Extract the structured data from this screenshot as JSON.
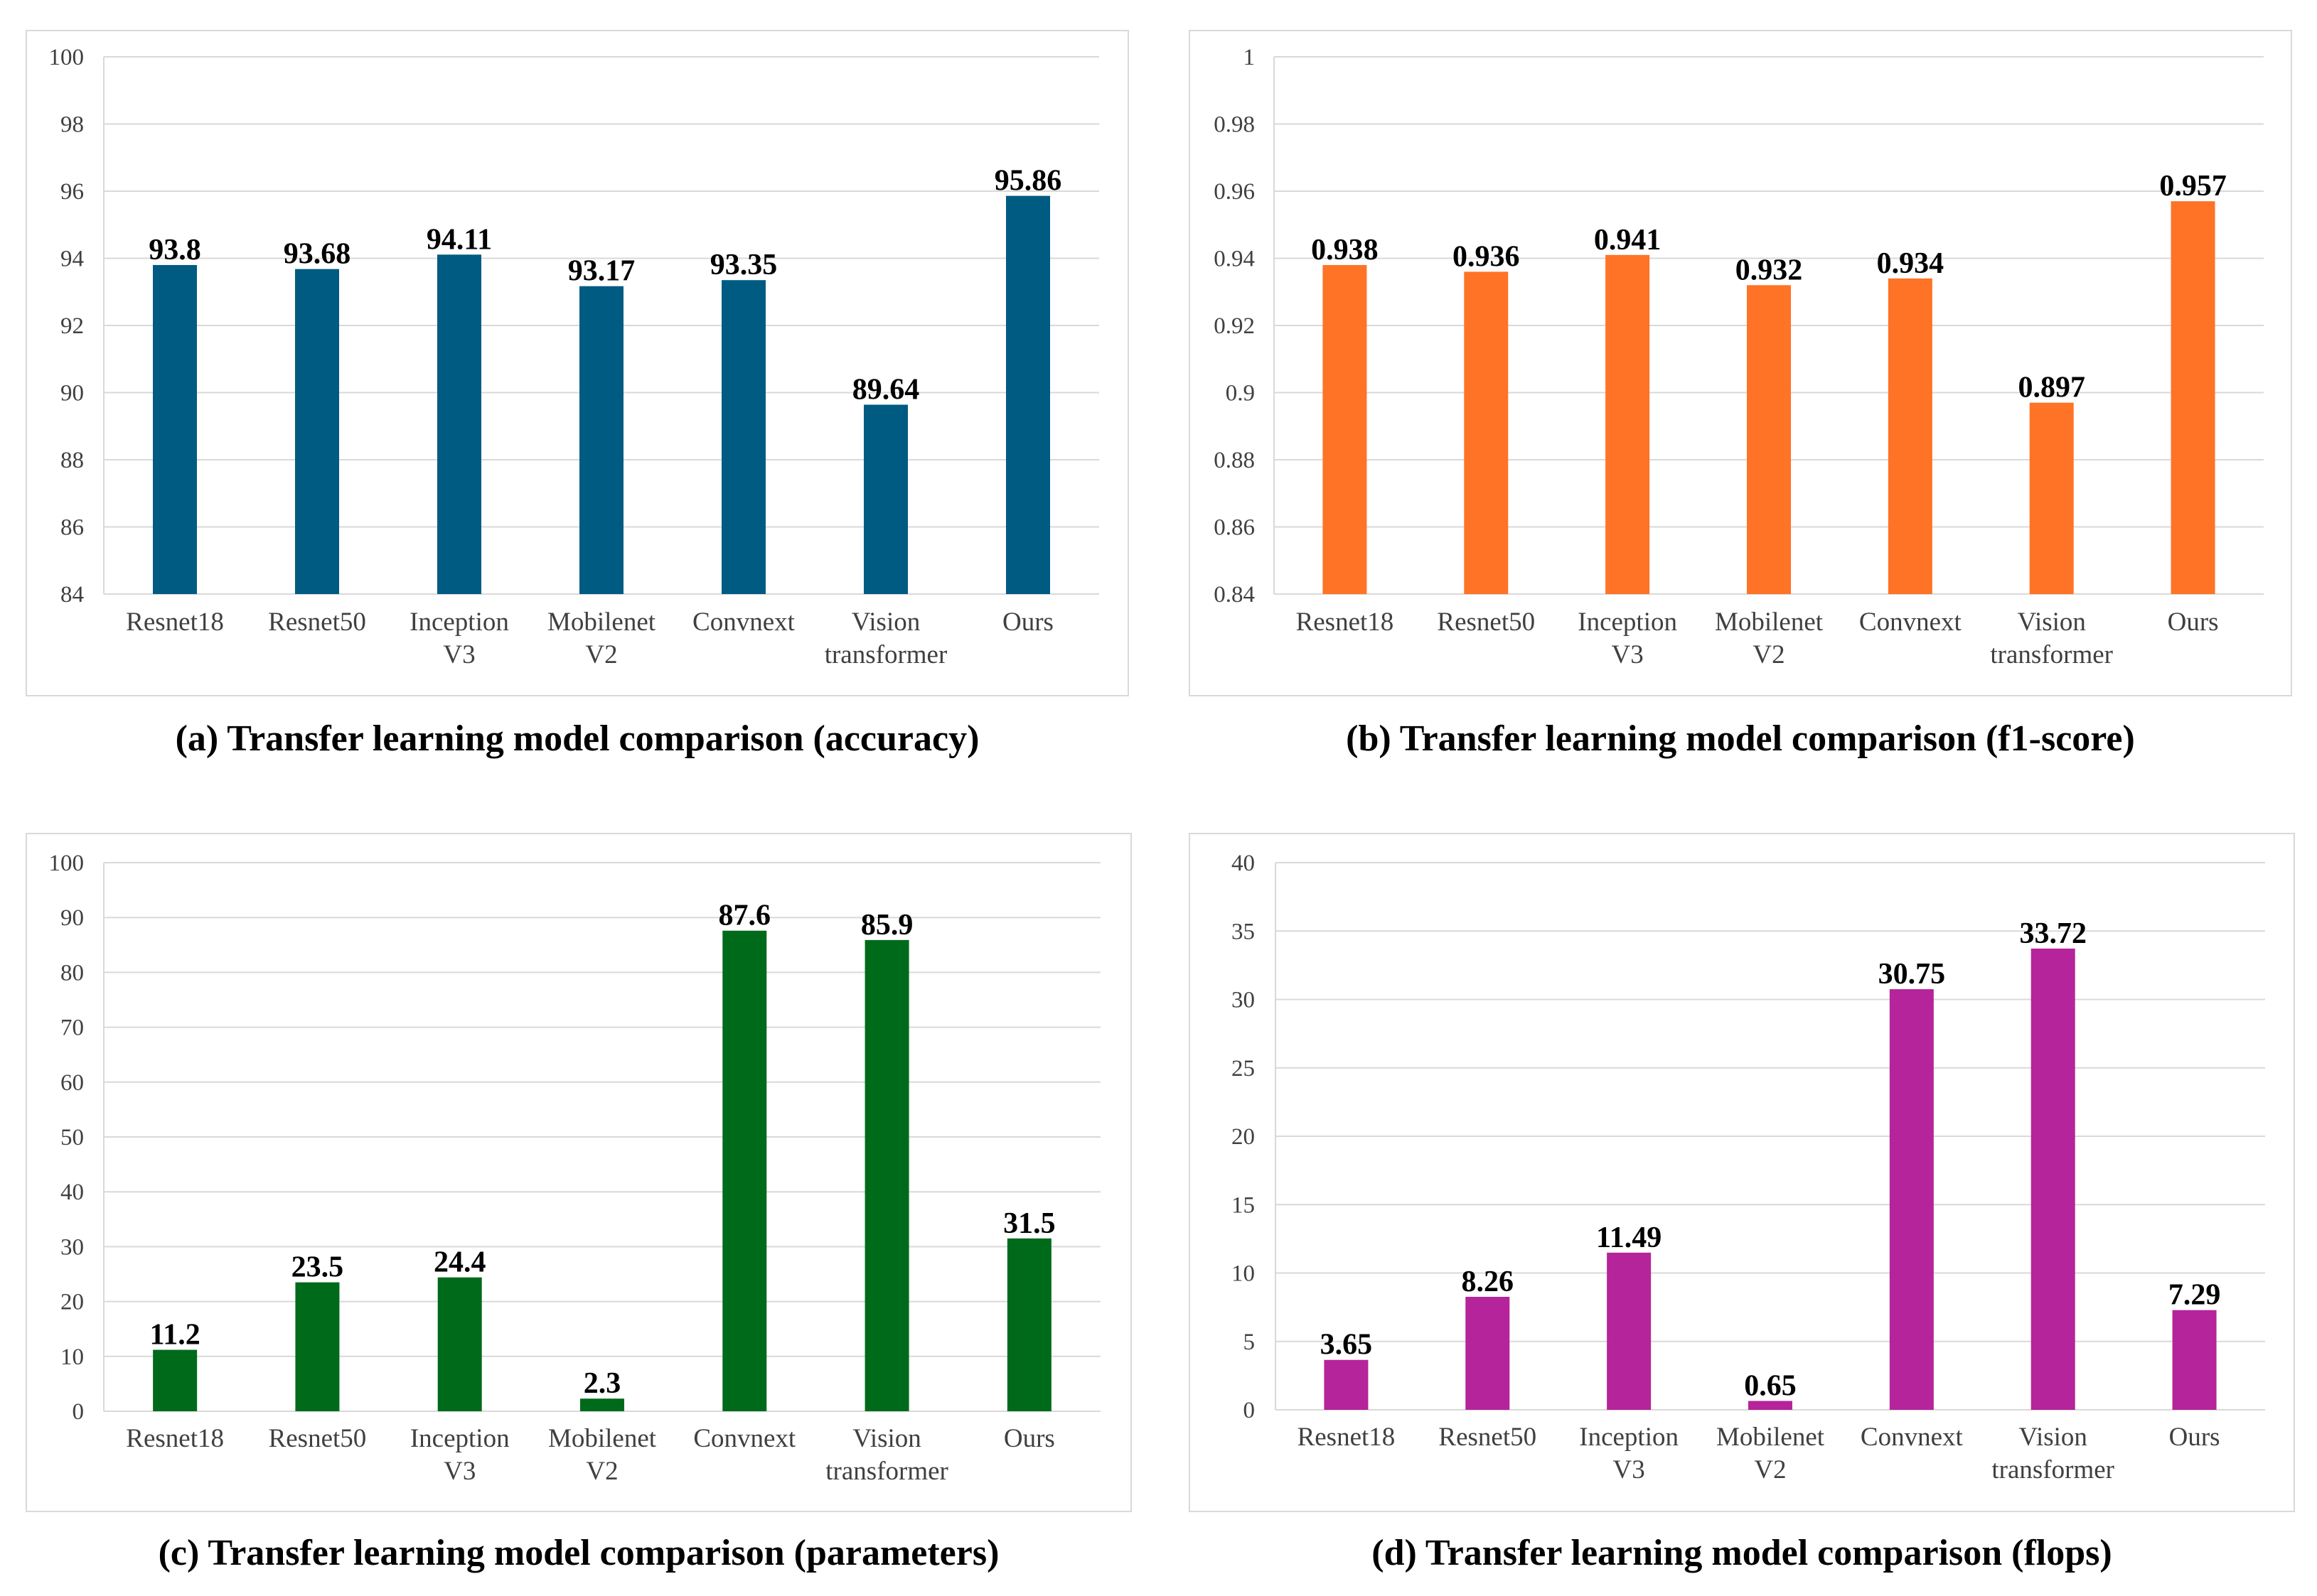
{
  "figure": {
    "categories": [
      [
        "Resnet18"
      ],
      [
        "Resnet50"
      ],
      [
        "Inception",
        "V3"
      ],
      [
        "Mobilenet",
        "V2"
      ],
      [
        "Convnext"
      ],
      [
        "Vision",
        "transformer"
      ],
      [
        "Ours"
      ]
    ]
  },
  "chart_data": [
    {
      "type": "bar",
      "id": "a",
      "title": "(a) Transfer learning model comparison (accuracy)",
      "categories": [
        "Resnet18",
        "Resnet50",
        "Inception V3",
        "Mobilenet V2",
        "Convnext",
        "Vision transformer",
        "Ours"
      ],
      "values": [
        93.8,
        93.68,
        94.11,
        93.17,
        93.35,
        89.64,
        95.86
      ],
      "labels": [
        "93.8",
        "93.68",
        "94.11",
        "93.17",
        "93.35",
        "89.64",
        "95.86"
      ],
      "ylim": [
        84,
        100
      ],
      "yticks": [
        "84",
        "86",
        "88",
        "90",
        "92",
        "94",
        "96",
        "98",
        "100"
      ],
      "color": "#005b82",
      "grid": true,
      "xlabel": "",
      "ylabel": ""
    },
    {
      "type": "bar",
      "id": "b",
      "title": "(b) Transfer learning model comparison (f1-score)",
      "categories": [
        "Resnet18",
        "Resnet50",
        "Inception V3",
        "Mobilenet V2",
        "Convnext",
        "Vision transformer",
        "Ours"
      ],
      "values": [
        0.938,
        0.936,
        0.941,
        0.932,
        0.934,
        0.897,
        0.957
      ],
      "labels": [
        "0.938",
        "0.936",
        "0.941",
        "0.932",
        "0.934",
        "0.897",
        "0.957"
      ],
      "ylim": [
        0.84,
        1
      ],
      "yticks": [
        "0.84",
        "0.86",
        "0.88",
        "0.9",
        "0.92",
        "0.94",
        "0.96",
        "0.98",
        "1"
      ],
      "color": "#ff7326",
      "grid": true,
      "xlabel": "",
      "ylabel": ""
    },
    {
      "type": "bar",
      "id": "c",
      "title": "(c) Transfer learning model comparison (parameters)",
      "categories": [
        "Resnet18",
        "Resnet50",
        "Inception V3",
        "Mobilenet V2",
        "Convnext",
        "Vision transformer",
        "Ours"
      ],
      "values": [
        11.2,
        23.5,
        24.4,
        2.3,
        87.6,
        85.9,
        31.5
      ],
      "labels": [
        "11.2",
        "23.5",
        "24.4",
        "2.3",
        "87.6",
        "85.9",
        "31.5"
      ],
      "ylim": [
        0,
        100
      ],
      "yticks": [
        "0",
        "10",
        "20",
        "30",
        "40",
        "50",
        "60",
        "70",
        "80",
        "90",
        "100"
      ],
      "color": "#006a1b",
      "grid": true,
      "xlabel": "",
      "ylabel": ""
    },
    {
      "type": "bar",
      "id": "d",
      "title": "(d) Transfer learning model comparison (flops)",
      "categories": [
        "Resnet18",
        "Resnet50",
        "Inception V3",
        "Mobilenet V2",
        "Convnext",
        "Vision transformer",
        "Ours"
      ],
      "values": [
        3.65,
        8.26,
        11.49,
        0.65,
        30.75,
        33.72,
        7.29
      ],
      "labels": [
        "3.65",
        "8.26",
        "11.49",
        "0.65",
        "30.75",
        "33.72",
        "7.29"
      ],
      "ylim": [
        0,
        40
      ],
      "yticks": [
        "0",
        "5",
        "10",
        "15",
        "20",
        "25",
        "30",
        "35",
        "40"
      ],
      "color": "#b5249a",
      "grid": true,
      "xlabel": "",
      "ylabel": ""
    }
  ]
}
